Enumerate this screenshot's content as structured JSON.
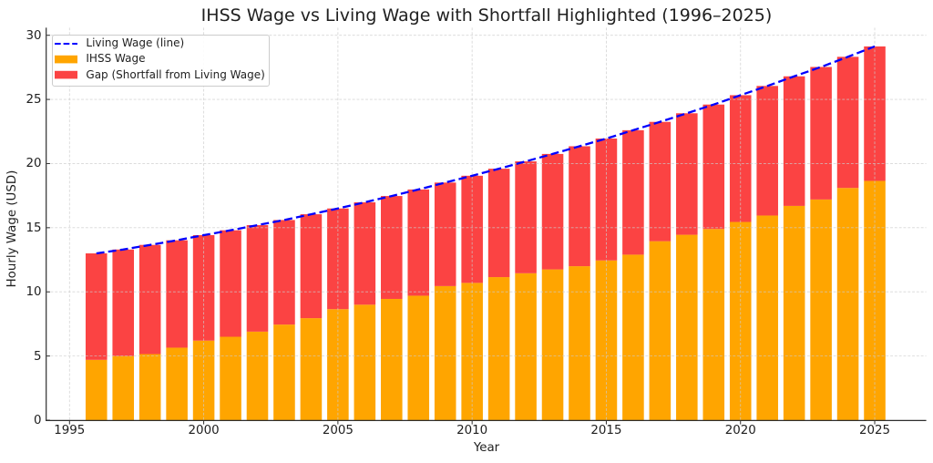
{
  "chart_data": {
    "type": "bar",
    "stacked": true,
    "title": "IHSS Wage vs Living Wage with Shortfall Highlighted (1996–2025)",
    "xlabel": "Year",
    "ylabel": "Hourly Wage (USD)",
    "categories": [
      1996,
      1997,
      1998,
      1999,
      2000,
      2001,
      2002,
      2003,
      2004,
      2005,
      2006,
      2007,
      2008,
      2009,
      2010,
      2011,
      2012,
      2013,
      2014,
      2015,
      2016,
      2017,
      2018,
      2019,
      2020,
      2021,
      2022,
      2023,
      2024,
      2025
    ],
    "series": [
      {
        "name": "IHSS Wage",
        "type": "bar",
        "color": "#ffa500",
        "values": [
          4.7,
          5.0,
          5.15,
          5.65,
          6.2,
          6.5,
          6.9,
          7.45,
          7.95,
          8.65,
          9.0,
          9.45,
          9.7,
          10.45,
          10.7,
          11.15,
          11.45,
          11.75,
          12.0,
          12.45,
          12.9,
          13.95,
          14.45,
          14.9,
          15.45,
          15.95,
          16.7,
          17.2,
          18.1,
          18.65
        ]
      },
      {
        "name": "Gap (Shortfall from Living Wage)",
        "type": "bar",
        "color": "#fb4343",
        "values": [
          8.3,
          8.3,
          8.51,
          8.37,
          8.22,
          8.3,
          8.3,
          8.15,
          8.1,
          7.85,
          7.98,
          8.02,
          8.28,
          8.07,
          8.35,
          8.45,
          8.72,
          9.0,
          9.35,
          9.5,
          9.7,
          9.3,
          9.47,
          9.7,
          9.88,
          10.1,
          10.1,
          10.33,
          10.22,
          10.48
        ]
      },
      {
        "name": "Living Wage (line)",
        "type": "line",
        "style": "dashed",
        "color": "#0000ff",
        "values": [
          13.0,
          13.3,
          13.66,
          14.02,
          14.42,
          14.8,
          15.2,
          15.6,
          16.05,
          16.5,
          16.98,
          17.47,
          17.98,
          18.52,
          19.05,
          19.6,
          20.17,
          20.75,
          21.35,
          21.95,
          22.6,
          23.25,
          23.92,
          24.6,
          25.33,
          26.05,
          26.8,
          27.53,
          28.32,
          29.13
        ]
      }
    ],
    "legend": {
      "position": "upper-left",
      "entries": [
        "Living Wage (line)",
        "IHSS Wage",
        "Gap (Shortfall from Living Wage)"
      ]
    },
    "xticks": [
      1995,
      2000,
      2005,
      2010,
      2015,
      2020,
      2025
    ],
    "yticks": [
      0,
      5,
      10,
      15,
      20,
      25,
      30
    ],
    "xlim": [
      1994.12,
      2026.92
    ],
    "ylim": [
      0,
      30.6
    ],
    "grid": true
  }
}
